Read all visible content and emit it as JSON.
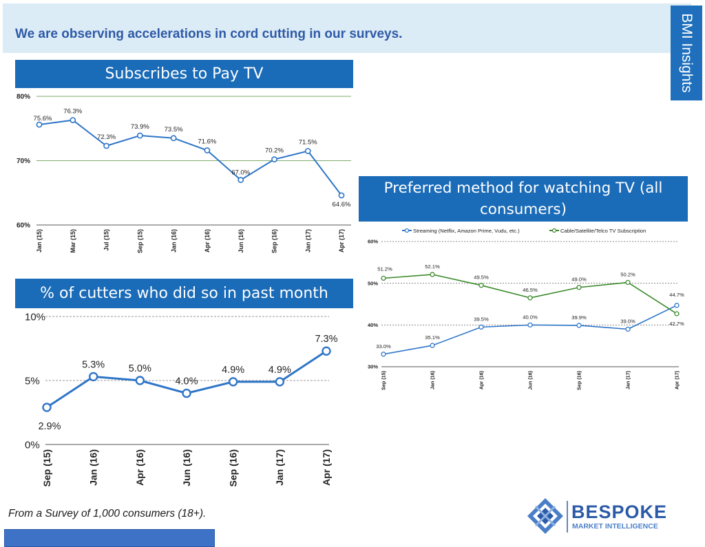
{
  "banner": {
    "title": "We are observing accelerations in cord cutting in our surveys."
  },
  "side_tab": {
    "label": "BMI Insights"
  },
  "footnote": "From a Survey of 1,000 consumers (18+).",
  "logo": {
    "name": "BESPOKE",
    "tagline": "MARKET INTELLIGENCE",
    "icon": "bespoke-logo-icon"
  },
  "colors": {
    "header_blue": "#1a6bb8",
    "line_blue": "#2e75c8",
    "line_green": "#3a8a2a",
    "banner_bg": "#dcecf6"
  },
  "chart_data": [
    {
      "type": "line",
      "title": "Subscribes to Pay TV",
      "categories": [
        "Jan (15)",
        "Mar (15)",
        "Jul (15)",
        "Sep (15)",
        "Jan (16)",
        "Apr (16)",
        "Jun (16)",
        "Sep (16)",
        "Jan (17)",
        "Apr (17)"
      ],
      "values": [
        75.6,
        76.3,
        72.3,
        73.9,
        73.5,
        71.6,
        67.0,
        70.2,
        71.5,
        64.6
      ],
      "value_labels": [
        "75.6%",
        "76.3%",
        "72.3%",
        "73.9%",
        "73.5%",
        "71.6%",
        "67.0%",
        "70.2%",
        "71.5%",
        "64.6%"
      ],
      "yticks": [
        "60%",
        "70%",
        "80%"
      ],
      "ylim": [
        60,
        80
      ],
      "grid": true
    },
    {
      "type": "line",
      "title": "% of cutters who did so in past month",
      "categories": [
        "Sep (15)",
        "Jan (16)",
        "Apr (16)",
        "Jun (16)",
        "Sep (16)",
        "Jan (17)",
        "Apr (17)"
      ],
      "values": [
        2.9,
        5.3,
        5.0,
        4.0,
        4.9,
        4.9,
        7.3
      ],
      "value_labels": [
        "2.9%",
        "5.3%",
        "5.0%",
        "4.0%",
        "4.9%",
        "4.9%",
        "7.3%"
      ],
      "yticks": [
        "0%",
        "5%",
        "10%"
      ],
      "ylim": [
        0,
        10
      ],
      "grid": true
    },
    {
      "type": "line",
      "title": "Preferred method for watching TV (all consumers)",
      "categories": [
        "Sep (15)",
        "Jan (16)",
        "Apr (16)",
        "Jun (16)",
        "Sep (16)",
        "Jan (17)",
        "Apr (17)"
      ],
      "series": [
        {
          "name": "Streaming (Netflix, Amazon Prime, Vudu, etc.)",
          "color": "#2e75c8",
          "values": [
            33.0,
            35.1,
            39.5,
            40.0,
            39.9,
            39.0,
            44.7
          ],
          "value_labels": [
            "33.0%",
            "35.1%",
            "39.5%",
            "40.0%",
            "39.9%",
            "39.0%",
            "44.7%"
          ]
        },
        {
          "name": "Cable/Satellite/Telco TV Subscription",
          "color": "#3a8a2a",
          "values": [
            51.2,
            52.1,
            49.5,
            46.5,
            49.0,
            50.2,
            42.7
          ],
          "value_labels": [
            "51.2%",
            "52.1%",
            "49.5%",
            "46.5%",
            "49.0%",
            "50.2%",
            "42.7%"
          ]
        }
      ],
      "legend": "top",
      "yticks": [
        "30%",
        "40%",
        "50%",
        "60%"
      ],
      "ylim": [
        30,
        60
      ],
      "grid": true
    }
  ]
}
